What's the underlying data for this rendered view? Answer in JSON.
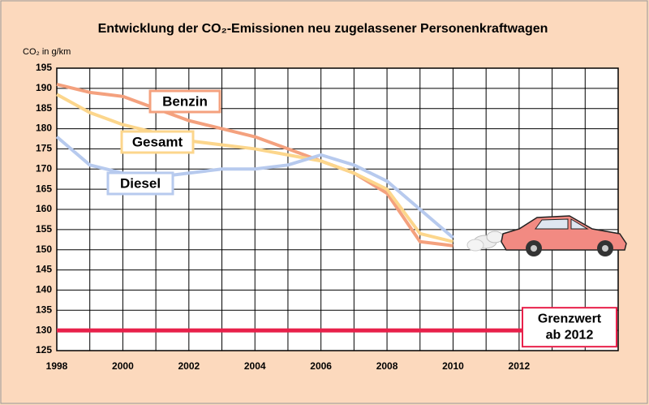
{
  "chart_data": {
    "type": "line",
    "title": "Entwicklung der CO₂-Emissionen neu zugelassener Personenkraftwagen",
    "y_label": "CO₂ in g/km",
    "x": [
      1998,
      1999,
      2000,
      2001,
      2002,
      2003,
      2004,
      2005,
      2006,
      2007,
      2008,
      2009,
      2010
    ],
    "series": [
      {
        "name": "Benzin",
        "color": "#f4a17e",
        "values": [
          191,
          189,
          188,
          185,
          182,
          180,
          178,
          175,
          172,
          169,
          164,
          152,
          151
        ]
      },
      {
        "name": "Gesamt",
        "color": "#fcd68c",
        "values": [
          188.5,
          184,
          181,
          179,
          177,
          176,
          175,
          173.5,
          172,
          169,
          165,
          154,
          152
        ]
      },
      {
        "name": "Diesel",
        "color": "#b7caee",
        "values": [
          178,
          171,
          169,
          168,
          169,
          170,
          170,
          171,
          173.5,
          171,
          167,
          160,
          153
        ]
      }
    ],
    "threshold": {
      "value": 130,
      "color": "#e8204a",
      "label": [
        "Grenzwert",
        "ab 2012"
      ]
    },
    "xlim": [
      1998,
      2015
    ],
    "ylim": [
      125,
      195
    ],
    "xticks": [
      1998,
      2000,
      2002,
      2004,
      2006,
      2008,
      2010,
      2012
    ],
    "xminorticks": [
      1999,
      2001,
      2003,
      2005,
      2007,
      2009,
      2011,
      2013,
      2014
    ],
    "yticks": [
      125,
      130,
      135,
      140,
      145,
      150,
      155,
      160,
      165,
      170,
      175,
      180,
      185,
      190,
      195
    ],
    "grid": true
  }
}
